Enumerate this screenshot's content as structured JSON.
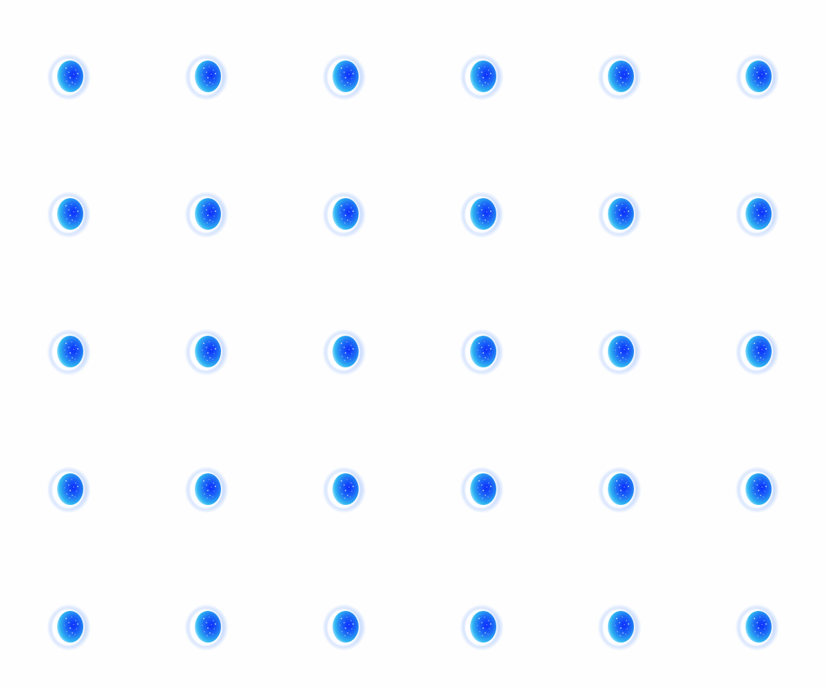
{
  "sprite_sheet": {
    "background": "#fefefe",
    "rows": 5,
    "columns": 6,
    "frame_count": 30,
    "sprite_icon": "blue-glowing-orb-icon",
    "colors": {
      "glow": "#7aa8ff",
      "core_dark": "#0a2cff",
      "core_mid": "#1d6cf5",
      "core_light": "#2fb6f0",
      "rim": "#ffffff",
      "sparkle": "#ffffff"
    }
  }
}
